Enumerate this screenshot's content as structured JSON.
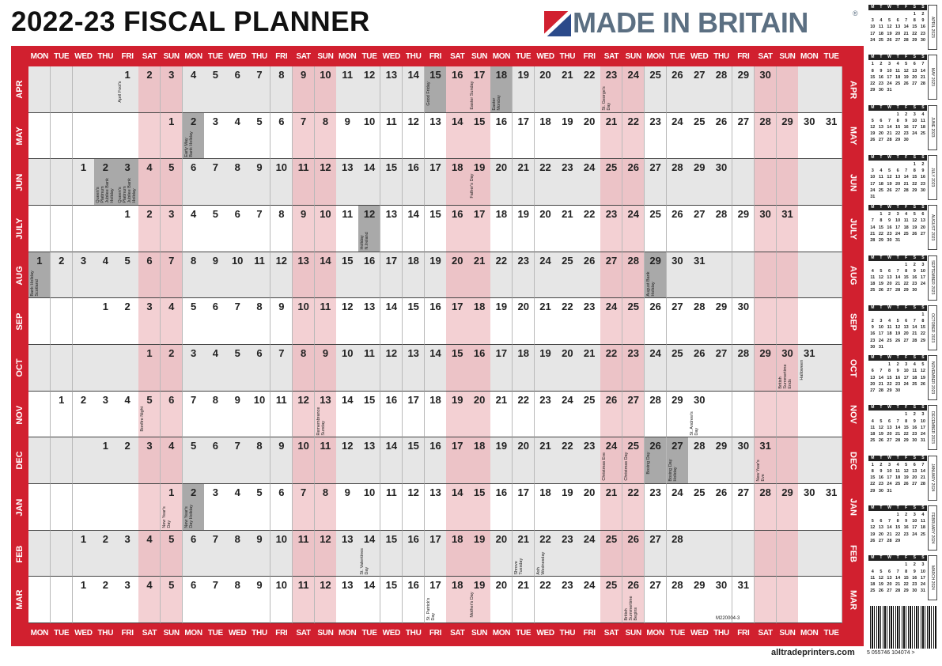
{
  "header": {
    "title": "2022-23 FISCAL PLANNER",
    "logo": "MADE IN BRITAIN",
    "logo_mark": "®"
  },
  "planner": {
    "weekdays": [
      "MON",
      "TUE",
      "WED",
      "THU",
      "FRI",
      "SAT",
      "SUN",
      "MON",
      "TUE",
      "WED",
      "THU",
      "FRI",
      "SAT",
      "SUN",
      "MON",
      "TUE",
      "WED",
      "THU",
      "FRI",
      "SAT",
      "SUN",
      "MON",
      "TUE",
      "WED",
      "THU",
      "FRI",
      "SAT",
      "SUN",
      "MON",
      "TUE",
      "WED",
      "THU",
      "FRI",
      "SAT",
      "SUN",
      "MON",
      "TUE"
    ],
    "months": [
      {
        "label": "APR",
        "days": [
          null,
          null,
          null,
          null,
          1,
          2,
          3,
          4,
          5,
          6,
          7,
          8,
          9,
          10,
          11,
          12,
          13,
          14,
          15,
          16,
          17,
          18,
          19,
          20,
          21,
          22,
          23,
          24,
          25,
          26,
          27,
          28,
          29,
          30
        ],
        "events": [
          {
            "day": 1,
            "label": "April Fool's",
            "holiday": false
          },
          {
            "day": 15,
            "label": "Good Friday",
            "holiday": true
          },
          {
            "day": 17,
            "label": "Easter Sunday",
            "holiday": false
          },
          {
            "day": 18,
            "label": "Easter Monday",
            "holiday": true
          },
          {
            "day": 23,
            "label": "St. George's Day",
            "holiday": false
          }
        ]
      },
      {
        "label": "MAY",
        "days": [
          null,
          null,
          null,
          null,
          null,
          null,
          1,
          2,
          3,
          4,
          5,
          6,
          7,
          8,
          9,
          10,
          11,
          12,
          13,
          14,
          15,
          16,
          17,
          18,
          19,
          20,
          21,
          22,
          23,
          24,
          25,
          26,
          27,
          28,
          29,
          30,
          31
        ],
        "events": [
          {
            "day": 2,
            "label": "Early May Bank Holiday",
            "holiday": true
          }
        ]
      },
      {
        "label": "JUN",
        "days": [
          null,
          null,
          1,
          2,
          3,
          4,
          5,
          6,
          7,
          8,
          9,
          10,
          11,
          12,
          13,
          14,
          15,
          16,
          17,
          18,
          19,
          20,
          21,
          22,
          23,
          24,
          25,
          26,
          27,
          28,
          29,
          30
        ],
        "events": [
          {
            "day": 2,
            "label": "Queen's Platinum Jubilee Bank Holiday",
            "holiday": true
          },
          {
            "day": 3,
            "label": "Queen's Platinum Jubilee Bank Holiday",
            "holiday": true
          },
          {
            "day": 19,
            "label": "Father's Day",
            "holiday": false
          }
        ]
      },
      {
        "label": "JULY",
        "days": [
          null,
          null,
          null,
          null,
          1,
          2,
          3,
          4,
          5,
          6,
          7,
          8,
          9,
          10,
          11,
          12,
          13,
          14,
          15,
          16,
          17,
          18,
          19,
          20,
          21,
          22,
          23,
          24,
          25,
          26,
          27,
          28,
          29,
          30,
          31
        ],
        "events": [
          {
            "day": 12,
            "label": "Holiday N.Ireland",
            "holiday": true
          }
        ]
      },
      {
        "label": "AUG",
        "days": [
          1,
          2,
          3,
          4,
          5,
          6,
          7,
          8,
          9,
          10,
          11,
          12,
          13,
          14,
          15,
          16,
          17,
          18,
          19,
          20,
          21,
          22,
          23,
          24,
          25,
          26,
          27,
          28,
          29,
          30,
          31
        ],
        "events": [
          {
            "day": 1,
            "label": "Bank Holiday Scotland",
            "holiday": true
          },
          {
            "day": 29,
            "label": "August Bank Holiday",
            "holiday": true
          }
        ]
      },
      {
        "label": "SEP",
        "days": [
          null,
          null,
          null,
          1,
          2,
          3,
          4,
          5,
          6,
          7,
          8,
          9,
          10,
          11,
          12,
          13,
          14,
          15,
          16,
          17,
          18,
          19,
          20,
          21,
          22,
          23,
          24,
          25,
          26,
          27,
          28,
          29,
          30
        ],
        "events": []
      },
      {
        "label": "OCT",
        "days": [
          null,
          null,
          null,
          null,
          null,
          1,
          2,
          3,
          4,
          5,
          6,
          7,
          8,
          9,
          10,
          11,
          12,
          13,
          14,
          15,
          16,
          17,
          18,
          19,
          20,
          21,
          22,
          23,
          24,
          25,
          26,
          27,
          28,
          29,
          30,
          31
        ],
        "events": [
          {
            "day": 30,
            "label": "British Summertime Ends",
            "holiday": false
          },
          {
            "day": 31,
            "label": "Halloween",
            "holiday": false
          }
        ]
      },
      {
        "label": "NOV",
        "days": [
          null,
          1,
          2,
          3,
          4,
          5,
          6,
          7,
          8,
          9,
          10,
          11,
          12,
          13,
          14,
          15,
          16,
          17,
          18,
          19,
          20,
          21,
          22,
          23,
          24,
          25,
          26,
          27,
          28,
          29,
          30
        ],
        "events": [
          {
            "day": 5,
            "label": "Bonfire Night",
            "holiday": false
          },
          {
            "day": 13,
            "label": "Remembrance Sunday",
            "holiday": false
          },
          {
            "day": 30,
            "label": "St. Andrew's Day",
            "holiday": false
          }
        ]
      },
      {
        "label": "DEC",
        "days": [
          null,
          null,
          null,
          1,
          2,
          3,
          4,
          5,
          6,
          7,
          8,
          9,
          10,
          11,
          12,
          13,
          14,
          15,
          16,
          17,
          18,
          19,
          20,
          21,
          22,
          23,
          24,
          25,
          26,
          27,
          28,
          29,
          30,
          31
        ],
        "events": [
          {
            "day": 24,
            "label": "Christmas Eve",
            "holiday": false
          },
          {
            "day": 25,
            "label": "Christmas Day",
            "holiday": false
          },
          {
            "day": 26,
            "label": "Boxing Day",
            "holiday": true
          },
          {
            "day": 27,
            "label": "Boxing Day Holiday",
            "holiday": true
          },
          {
            "day": 31,
            "label": "New Year's Eve",
            "holiday": false
          }
        ]
      },
      {
        "label": "JAN",
        "days": [
          null,
          null,
          null,
          null,
          null,
          null,
          1,
          2,
          3,
          4,
          5,
          6,
          7,
          8,
          9,
          10,
          11,
          12,
          13,
          14,
          15,
          16,
          17,
          18,
          19,
          20,
          21,
          22,
          23,
          24,
          25,
          26,
          27,
          28,
          29,
          30,
          31
        ],
        "events": [
          {
            "day": 1,
            "label": "New Year's Day",
            "holiday": false
          },
          {
            "day": 2,
            "label": "New Year's Day Holiday",
            "holiday": true
          }
        ]
      },
      {
        "label": "FEB",
        "days": [
          null,
          null,
          1,
          2,
          3,
          4,
          5,
          6,
          7,
          8,
          9,
          10,
          11,
          12,
          13,
          14,
          15,
          16,
          17,
          18,
          19,
          20,
          21,
          22,
          23,
          24,
          25,
          26,
          27,
          28
        ],
        "events": [
          {
            "day": 14,
            "label": "St. Valentines Day",
            "holiday": false
          },
          {
            "day": 21,
            "label": "Shrove Tuesday",
            "holiday": false
          },
          {
            "day": 22,
            "label": "Ash Wednesday",
            "holiday": false
          }
        ]
      },
      {
        "label": "MAR",
        "days": [
          null,
          null,
          1,
          2,
          3,
          4,
          5,
          6,
          7,
          8,
          9,
          10,
          11,
          12,
          13,
          14,
          15,
          16,
          17,
          18,
          19,
          20,
          21,
          22,
          23,
          24,
          25,
          26,
          27,
          28,
          29,
          30,
          31
        ],
        "events": [
          {
            "day": 17,
            "label": "St. Patrick's Day",
            "holiday": false
          },
          {
            "day": 19,
            "label": "Mother's Day",
            "holiday": false
          },
          {
            "day": 26,
            "label": "British Summertime Begins",
            "holiday": false
          }
        ]
      }
    ]
  },
  "mini_calendars": {
    "weekdays": [
      "M",
      "T",
      "W",
      "T",
      "F",
      "S",
      "S"
    ],
    "months": [
      {
        "title": "APRIL 2023",
        "days": [
          null,
          null,
          null,
          null,
          null,
          1,
          2,
          3,
          4,
          5,
          6,
          7,
          8,
          9,
          10,
          11,
          12,
          13,
          14,
          15,
          16,
          17,
          18,
          19,
          20,
          21,
          22,
          23,
          24,
          25,
          26,
          27,
          28,
          29,
          30
        ]
      },
      {
        "title": "MAY 2023",
        "days": [
          1,
          2,
          3,
          4,
          5,
          6,
          7,
          8,
          9,
          10,
          11,
          12,
          13,
          14,
          15,
          16,
          17,
          18,
          19,
          20,
          21,
          22,
          23,
          24,
          25,
          26,
          27,
          28,
          29,
          30,
          31
        ]
      },
      {
        "title": "JUNE 2023",
        "days": [
          null,
          null,
          null,
          1,
          2,
          3,
          4,
          5,
          6,
          7,
          8,
          9,
          10,
          11,
          12,
          13,
          14,
          15,
          16,
          17,
          18,
          19,
          20,
          21,
          22,
          23,
          24,
          25,
          26,
          27,
          28,
          29,
          30
        ]
      },
      {
        "title": "JULY 2023",
        "days": [
          null,
          null,
          null,
          null,
          null,
          1,
          2,
          3,
          4,
          5,
          6,
          7,
          8,
          9,
          10,
          11,
          12,
          13,
          14,
          15,
          16,
          17,
          18,
          19,
          20,
          21,
          22,
          23,
          24,
          25,
          26,
          27,
          28,
          29,
          30,
          31
        ]
      },
      {
        "title": "AUGUST 2023",
        "days": [
          null,
          1,
          2,
          3,
          4,
          5,
          6,
          7,
          8,
          9,
          10,
          11,
          12,
          13,
          14,
          15,
          16,
          17,
          18,
          19,
          20,
          21,
          22,
          23,
          24,
          25,
          26,
          27,
          28,
          29,
          30,
          31
        ]
      },
      {
        "title": "SEPTEMBER 2023",
        "days": [
          null,
          null,
          null,
          null,
          1,
          2,
          3,
          4,
          5,
          6,
          7,
          8,
          9,
          10,
          11,
          12,
          13,
          14,
          15,
          16,
          17,
          18,
          19,
          20,
          21,
          22,
          23,
          24,
          25,
          26,
          27,
          28,
          29,
          30
        ]
      },
      {
        "title": "OCTOBER 2023",
        "days": [
          null,
          null,
          null,
          null,
          null,
          null,
          1,
          2,
          3,
          4,
          5,
          6,
          7,
          8,
          9,
          10,
          11,
          12,
          13,
          14,
          15,
          16,
          17,
          18,
          19,
          20,
          21,
          22,
          23,
          24,
          25,
          26,
          27,
          28,
          29,
          30,
          31
        ]
      },
      {
        "title": "NOVEMBER 2023",
        "days": [
          null,
          null,
          1,
          2,
          3,
          4,
          5,
          6,
          7,
          8,
          9,
          10,
          11,
          12,
          13,
          14,
          15,
          16,
          17,
          18,
          19,
          20,
          21,
          22,
          23,
          24,
          25,
          26,
          27,
          28,
          29,
          30
        ]
      },
      {
        "title": "DECEMBER 2023",
        "days": [
          null,
          null,
          null,
          null,
          1,
          2,
          3,
          4,
          5,
          6,
          7,
          8,
          9,
          10,
          11,
          12,
          13,
          14,
          15,
          16,
          17,
          18,
          19,
          20,
          21,
          22,
          23,
          24,
          25,
          26,
          27,
          28,
          29,
          30,
          31
        ]
      },
      {
        "title": "JANUARY 2024",
        "days": [
          1,
          2,
          3,
          4,
          5,
          6,
          7,
          8,
          9,
          10,
          11,
          12,
          13,
          14,
          15,
          16,
          17,
          18,
          19,
          20,
          21,
          22,
          23,
          24,
          25,
          26,
          27,
          28,
          29,
          30,
          31
        ]
      },
      {
        "title": "FEBRUARY 2024",
        "days": [
          null,
          null,
          null,
          1,
          2,
          3,
          4,
          5,
          6,
          7,
          8,
          9,
          10,
          11,
          12,
          13,
          14,
          15,
          16,
          17,
          18,
          19,
          20,
          21,
          22,
          23,
          24,
          25,
          26,
          27,
          28,
          29
        ]
      },
      {
        "title": "MARCH 2024",
        "days": [
          null,
          null,
          null,
          null,
          1,
          2,
          3,
          4,
          5,
          6,
          7,
          8,
          9,
          10,
          11,
          12,
          13,
          14,
          15,
          16,
          17,
          18,
          19,
          20,
          21,
          22,
          23,
          24,
          25,
          26,
          27,
          28,
          29,
          30,
          31
        ]
      }
    ]
  },
  "footer": {
    "code": "M220004-3",
    "website": "alltradeprinters.com",
    "barcode": "5 055746 104074 >"
  }
}
